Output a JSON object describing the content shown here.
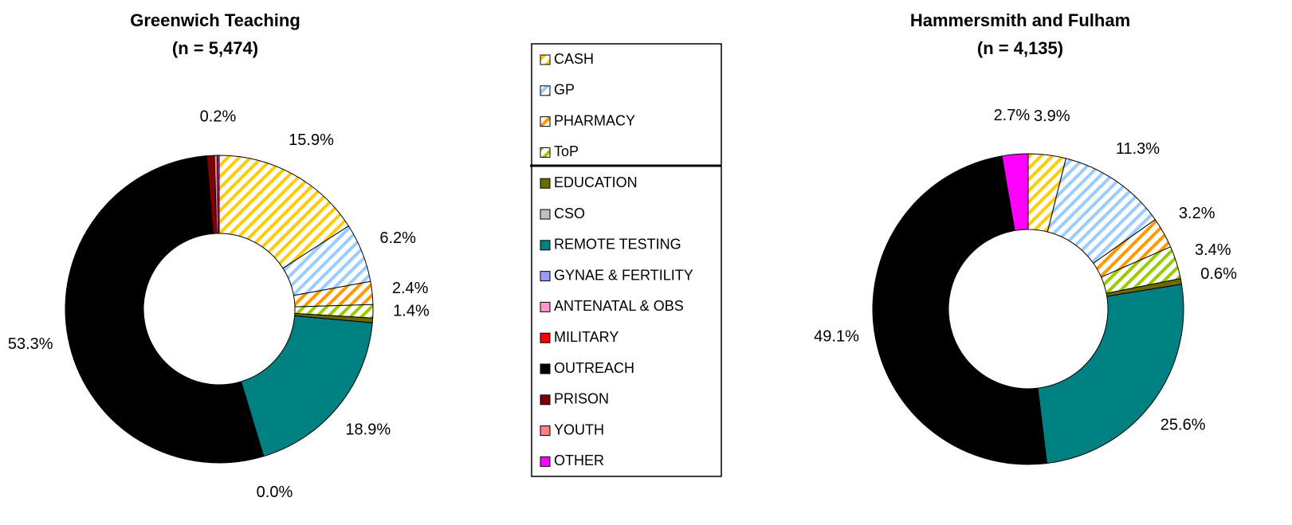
{
  "chart_data": {
    "type": "donut",
    "categories": [
      "CASH",
      "GP",
      "PHARMACY",
      "ToP",
      "EDUCATION",
      "CSO",
      "REMOTE TESTING",
      "GYNAE & FERTILITY",
      "ANTENATAL & OBS",
      "MILITARY",
      "OUTREACH",
      "PRISON",
      "YOUTH",
      "OTHER"
    ],
    "colors": [
      "#ffcc00",
      "#99ccff",
      "#ff9900",
      "#99cc00",
      "#6b6b00",
      "#c0c0c0",
      "#008080",
      "#9999ff",
      "#ff99cc",
      "#ff0000",
      "#000000",
      "#800000",
      "#ff8080",
      "#ff00ff"
    ],
    "hatched": [
      true,
      true,
      true,
      true,
      false,
      false,
      false,
      false,
      false,
      false,
      false,
      false,
      false,
      false
    ],
    "series": [
      {
        "name": "Greenwich Teaching",
        "subtitle": "(n = 5,474)",
        "values": [
          15.9,
          6.2,
          2.4,
          1.4,
          0.5,
          0,
          18.9,
          0.0,
          0,
          0,
          53.3,
          0.8,
          0.3,
          0.2
        ],
        "value_labels": [
          "15.9%",
          "6.2%",
          "2.4%",
          "1.4%",
          null,
          null,
          "18.9%",
          "0.0%",
          null,
          null,
          "53.3%",
          null,
          null,
          "0.2%"
        ]
      },
      {
        "name": "Hammersmith and Fulham",
        "subtitle": "(n = 4,135)",
        "values": [
          3.9,
          11.3,
          3.2,
          3.4,
          0.6,
          0,
          25.6,
          0,
          0,
          0,
          49.1,
          0,
          0,
          2.7
        ],
        "value_labels": [
          "3.9%",
          "11.3%",
          "3.2%",
          "3.4%",
          "0.6%",
          null,
          "25.6%",
          null,
          null,
          null,
          "49.1%",
          null,
          null,
          "2.7%"
        ]
      }
    ]
  }
}
